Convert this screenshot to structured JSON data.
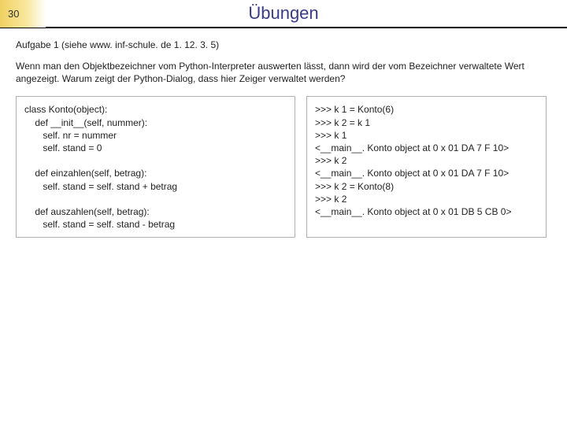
{
  "header": {
    "page_number": "30",
    "title": "Übungen",
    "title_color": "#3a3a8a",
    "gradient_start": "#f0d060",
    "gradient_end": "#ffffff",
    "border_color": "#000000"
  },
  "subtitle": "Aufgabe 1 (siehe www. inf-schule. de 1. 12. 3. 5)",
  "paragraph": "Wenn man den Objektbezeichner vom Python-Interpreter auswerten lässt, dann wird der vom Bezeichner verwaltete Wert angezeigt. Warum zeigt der Python-Dialog, dass hier Zeiger verwaltet werden?",
  "code_left": "class Konto(object):\n    def __init__(self, nummer):\n       self. nr = nummer\n       self. stand = 0\n\n    def einzahlen(self, betrag):\n       self. stand = self. stand + betrag\n\n    def auszahlen(self, betrag):\n       self. stand = self. stand - betrag",
  "code_right": ">>> k 1 = Konto(6)\n>>> k 2 = k 1\n>>> k 1\n<__main__. Konto object at 0 x 01 DA 7 F 10>\n>>> k 2\n<__main__. Konto object at 0 x 01 DA 7 F 10>\n>>> k 2 = Konto(8)\n>>> k 2\n<__main__. Konto object at 0 x 01 DB 5 CB 0>",
  "styling": {
    "body_font": "Verdana",
    "body_fontsize": 12,
    "title_fontsize": 22,
    "code_border_color": "#b0b0b0",
    "text_color": "#222222",
    "background": "#ffffff"
  }
}
